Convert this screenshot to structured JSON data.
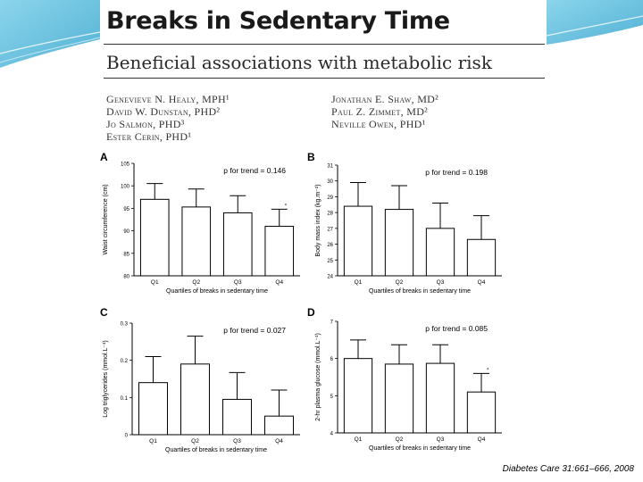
{
  "title": "Breaks in Sedentary Time",
  "subtitle": "Beneficial associations with metabolic risk",
  "authors_left": [
    "Genevieve N. Healy, MPH¹",
    "David W. Dunstan, PHD²",
    "Jo Salmon, PHD³",
    "Ester Cerin, PHD¹"
  ],
  "authors_right": [
    "Jonathan E. Shaw, MD²",
    "Paul Z. Zimmet, MD²",
    "Neville Owen, PHD¹"
  ],
  "citation": "Diabetes Care 31:661–666, 2008",
  "colors": {
    "accent": "#5bb8d6",
    "bar_fill": "#ffffff",
    "bar_stroke": "#000000"
  },
  "chart_data": [
    {
      "panel": "A",
      "type": "bar",
      "categories": [
        "Q1",
        "Q2",
        "Q3",
        "Q4"
      ],
      "values": [
        97,
        95.3,
        94,
        91
      ],
      "errors": [
        3.5,
        4,
        3.8,
        3.8
      ],
      "star": [
        false,
        false,
        false,
        true
      ],
      "ylim": [
        80,
        105
      ],
      "yticks": [
        80,
        85,
        90,
        95,
        100,
        105
      ],
      "ylabel": "Waist circumference (cm)",
      "xlabel": "Quartiles of breaks in sedentary time",
      "trend": "p for trend = 0.146"
    },
    {
      "panel": "B",
      "type": "bar",
      "categories": [
        "Q1",
        "Q2",
        "Q3",
        "Q4"
      ],
      "values": [
        28.4,
        28.2,
        27,
        26.3
      ],
      "errors": [
        1.5,
        1.5,
        1.6,
        1.5
      ],
      "star": [
        false,
        false,
        false,
        false
      ],
      "ylim": [
        24,
        31
      ],
      "yticks": [
        24,
        25,
        26,
        27,
        28,
        29,
        30,
        31
      ],
      "ylabel": "Body mass index (kg.m⁻²)",
      "xlabel": "Quartiles of breaks in sedentary time",
      "trend": "p for trend = 0.198"
    },
    {
      "panel": "C",
      "type": "bar",
      "categories": [
        "Q1",
        "Q2",
        "Q3",
        "Q4"
      ],
      "values": [
        0.14,
        0.19,
        0.095,
        0.05
      ],
      "errors": [
        0.07,
        0.075,
        0.072,
        0.07
      ],
      "star": [
        false,
        false,
        false,
        false
      ],
      "ylim": [
        0,
        0.3
      ],
      "yticks": [
        0,
        0.1,
        0.2,
        0.3
      ],
      "ylabel": "Log triglycerides (mmol.L⁻¹)",
      "xlabel": "Quartiles of breaks in sedentary time",
      "trend": "p for trend = 0.027"
    },
    {
      "panel": "D",
      "type": "bar",
      "categories": [
        "Q1",
        "Q2",
        "Q3",
        "Q4"
      ],
      "values": [
        6,
        5.85,
        5.87,
        5.1
      ],
      "errors": [
        0.5,
        0.52,
        0.5,
        0.5
      ],
      "star": [
        false,
        false,
        false,
        true
      ],
      "ylim": [
        4,
        7
      ],
      "yticks": [
        4,
        5,
        6,
        7
      ],
      "ylabel": "2-hr plasma glucose (mmol.L⁻¹)",
      "xlabel": "Quartiles of breaks in sedentary time",
      "trend": "p for trend = 0.085"
    }
  ]
}
